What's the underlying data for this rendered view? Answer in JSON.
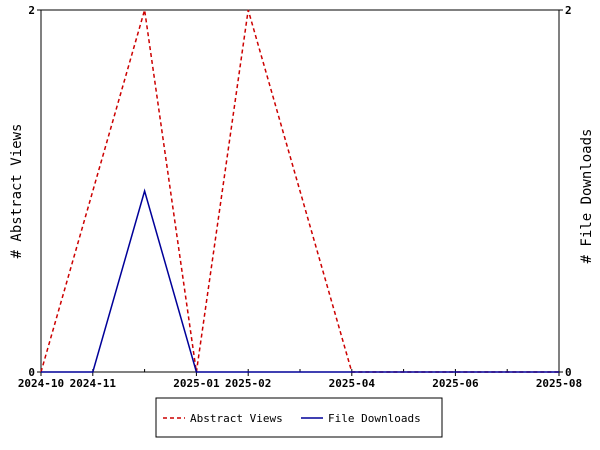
{
  "chart_data": {
    "type": "line",
    "x_axis": {
      "type": "date",
      "tick_labels": [
        "2024-10",
        "2024-11",
        "2025-01",
        "2025-02",
        "2025-04",
        "2025-06",
        "2025-08"
      ],
      "range": [
        "2024-10",
        "2025-08"
      ]
    },
    "y_axis_left": {
      "label": "# Abstract Views",
      "ylim": [
        0,
        2
      ],
      "tick_labels": [
        "0",
        "2"
      ]
    },
    "y_axis_right": {
      "label": "# File Downloads",
      "ylim": [
        0,
        2
      ],
      "tick_labels": [
        "0",
        "2"
      ]
    },
    "series": [
      {
        "name": "Abstract Views",
        "axis": "left",
        "color": "#cc0000",
        "dash": "dashed",
        "x": [
          "2024-10",
          "2024-12",
          "2025-01",
          "2025-02",
          "2025-04",
          "2025-08"
        ],
        "y": [
          0,
          2,
          0,
          2,
          0,
          0
        ]
      },
      {
        "name": "File Downloads",
        "axis": "right",
        "color": "#000099",
        "dash": "solid",
        "x": [
          "2024-10",
          "2024-11",
          "2024-12",
          "2025-01",
          "2025-08"
        ],
        "y": [
          0,
          0,
          1,
          0,
          0
        ]
      }
    ],
    "legend_position": "bottom-center",
    "grid": false
  }
}
